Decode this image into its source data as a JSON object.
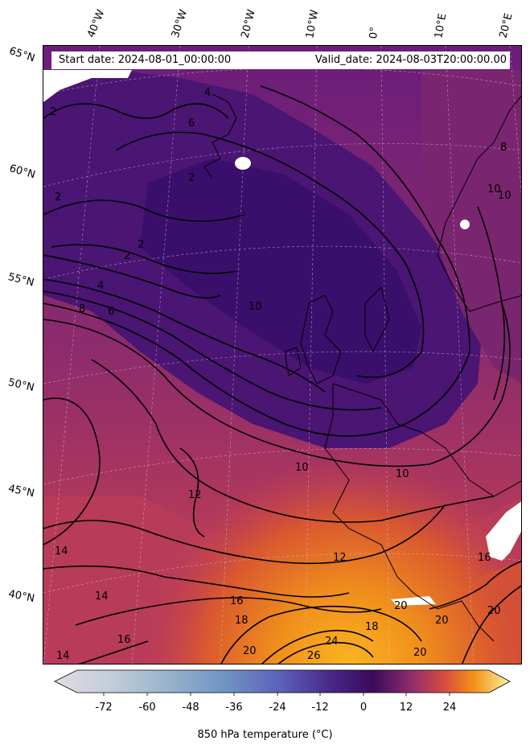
{
  "header": {
    "start_date": "Start date: 2024-08-01_00:00:00",
    "valid_date": "Valid_date: 2024-08-03T20:00:00.00"
  },
  "map": {
    "longitude_labels": [
      "40°W",
      "30°W",
      "20°W",
      "10°W",
      "0°",
      "10°E",
      "20°E"
    ],
    "latitude_labels": [
      "65°N",
      "60°N",
      "55°N",
      "50°N",
      "45°N",
      "40°N"
    ],
    "contour_labels": [
      "2",
      "4",
      "6",
      "2",
      "2",
      "2",
      "2",
      "4",
      "6",
      "8",
      "10",
      "10",
      "12",
      "12",
      "14",
      "14",
      "14",
      "16",
      "16",
      "18",
      "18",
      "20",
      "20",
      "20",
      "24",
      "26",
      "10",
      "10",
      "8",
      "10",
      "16",
      "20",
      "20"
    ],
    "colors": {
      "cold": "#3d1072",
      "mid": "#8a2a6c",
      "warm": "#c13f53",
      "hot": "#f39a1b",
      "hottest": "#fbbf24"
    }
  },
  "colorbar": {
    "ticks": [
      "-72",
      "-60",
      "-48",
      "-36",
      "-24",
      "-12",
      "0",
      "12",
      "24"
    ],
    "label": "850 hPa temperature (°C)",
    "min": -84,
    "max": 36,
    "extend": "both"
  }
}
